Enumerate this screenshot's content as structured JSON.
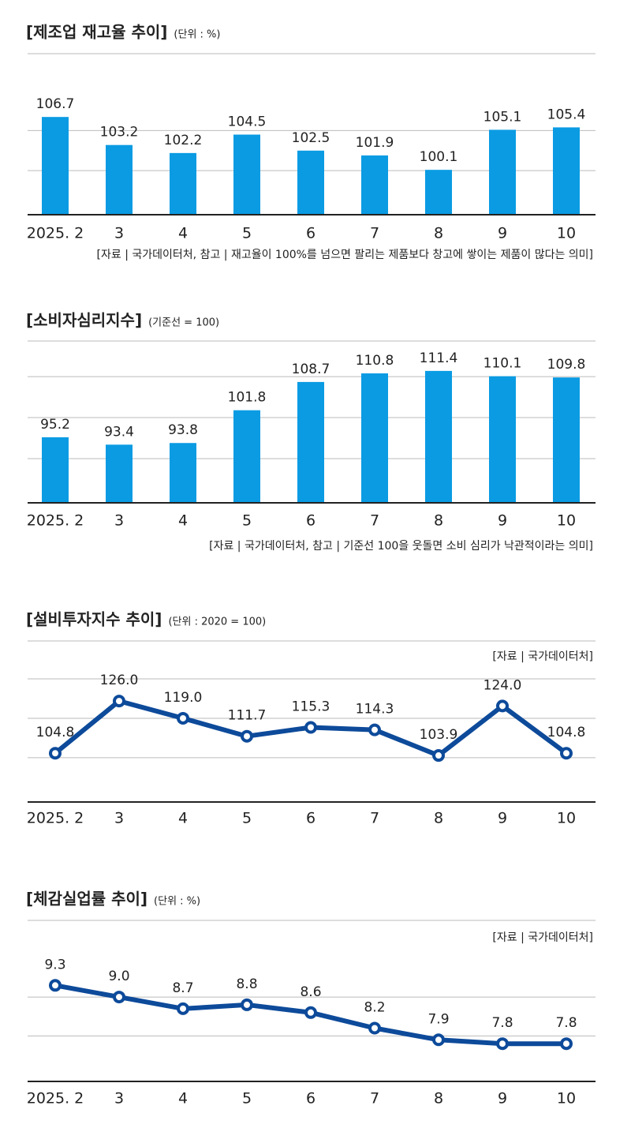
{
  "chart_data": [
    {
      "type": "bar",
      "title": "[제조업 재고율 추이]",
      "subtitle": "(단위 : %)",
      "source": "[자료 | 국가데이터처, 참고 | 재고율이 100%를 넘으면 팔리는 제품보다 창고에 쌓이는 제품이 많다는 의미]",
      "categories": [
        "2025. 2",
        "3",
        "4",
        "5",
        "6",
        "7",
        "8",
        "9",
        "10"
      ],
      "values": [
        106.7,
        103.2,
        102.2,
        104.5,
        102.5,
        101.9,
        100.1,
        105.1,
        105.4
      ],
      "color": "#0a9be3",
      "ylim": [
        94.5,
        114.6
      ],
      "yticks": [
        100,
        105
      ],
      "grid": true
    },
    {
      "type": "bar",
      "title": "[소비자심리지수]",
      "subtitle": "(기준선 = 100)",
      "source": "[자료 | 국가데이터처, 참고 | 기준선 100을 웃돌면 소비 심리가 낙관적이라는 의미]",
      "categories": [
        "2025. 2",
        "3",
        "4",
        "5",
        "6",
        "7",
        "8",
        "9",
        "10"
      ],
      "values": [
        95.2,
        93.4,
        93.8,
        101.8,
        108.7,
        110.8,
        111.4,
        110.1,
        109.8
      ],
      "color": "#0a9be3",
      "ylim": [
        79.2,
        118.7
      ],
      "yticks": [
        90,
        100,
        110
      ],
      "grid": true
    },
    {
      "type": "line",
      "title": "[설비투자지수 추이]",
      "subtitle": "(단위 : 2020 = 100)",
      "source": "[자료 | 국가데이터처]",
      "categories": [
        "2025. 2",
        "3",
        "4",
        "5",
        "6",
        "7",
        "8",
        "9",
        "10"
      ],
      "values": [
        104.8,
        126,
        119,
        111.7,
        115.3,
        114.3,
        103.9,
        124,
        104.8
      ],
      "value_labels": [
        "104.8",
        "126.0",
        "119.0",
        "111.7",
        "115.3",
        "114.3",
        "103.9",
        "124.0",
        "104.8"
      ],
      "color": "#0d4a9a",
      "ylim": [
        85,
        150.4
      ],
      "yticks": [
        103,
        119,
        135
      ],
      "grid": true
    },
    {
      "type": "line",
      "title": "[체감실업률 추이]",
      "subtitle": "(단위 : %)",
      "source": "[자료 | 국가데이터처]",
      "categories": [
        "2025. 2",
        "3",
        "4",
        "5",
        "6",
        "7",
        "8",
        "9",
        "10"
      ],
      "values": [
        9.3,
        9,
        8.7,
        8.8,
        8.6,
        8.2,
        7.9,
        7.8,
        7.8
      ],
      "value_labels": [
        "9.3",
        "9.0",
        "8.7",
        "8.8",
        "8.6",
        "8.2",
        "7.9",
        "7.8",
        "7.8"
      ],
      "color": "#0d4a9a",
      "ylim": [
        6.83,
        10.97
      ],
      "yticks": [
        8,
        9
      ],
      "grid": true
    }
  ]
}
